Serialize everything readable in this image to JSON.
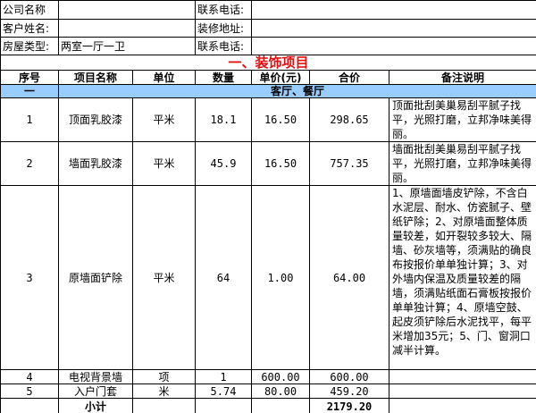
{
  "info": [
    {
      "label": "公司名称",
      "value": "",
      "label2": "联系电话:",
      "value2": ""
    },
    {
      "label": "客户姓名:",
      "value": "",
      "label2": "装修地址:",
      "value2": ""
    },
    {
      "label": "房屋类型:",
      "value": "两室一厅一卫",
      "label2": "联系电话:",
      "value2": ""
    }
  ],
  "title": "一、装饰项目",
  "headers": [
    "序号",
    "项目名称",
    "单位",
    "数量",
    "单价(元)",
    "合价",
    "备注说明"
  ],
  "section": {
    "no": "一",
    "name": "客厅、餐厅"
  },
  "rows": [
    {
      "no": "1",
      "name": "顶面乳胶漆",
      "unit": "平米",
      "qty": "18.1",
      "price": "16.50",
      "total": "298.65",
      "note": "顶面批刮美巢易刮平腻子找平，光照打磨，立邦净味美得丽。"
    },
    {
      "no": "2",
      "name": "墙面乳胶漆",
      "unit": "平米",
      "qty": "45.9",
      "price": "16.50",
      "total": "757.35",
      "note": "墙面批刮美巢易刮平腻子找平，光照打磨，立邦净味美得丽。"
    },
    {
      "no": "3",
      "name": "原墙面铲除",
      "unit": "平米",
      "qty": "64",
      "price": "1.00",
      "total": "64.00",
      "note": "1、原墙面墙皮铲除，不含白水泥层、耐水、仿瓷腻子、壁纸铲除；2、对原墙面整体质量较差，如开裂较多较大、隔墙、砂灰墙等，须满贴的确良布按报价单单独计算；3、对外墙内保温及质量较差的隔墙，须满贴纸面石膏板按报价单单独计算；4、原墙空鼓、起皮须铲除后水泥找平，每平米增加35元；5、门、窗洞口减半计算。"
    },
    {
      "no": "4",
      "name": "电视背景墙",
      "unit": "项",
      "qty": "1",
      "price": "600.00",
      "total": "600.00",
      "note": ""
    },
    {
      "no": "5",
      "name": "入户门套",
      "unit": "米",
      "qty": "5.74",
      "price": "80.00",
      "total": "459.20",
      "note": ""
    }
  ],
  "subtotal": {
    "label": "小计",
    "total": "2179.20"
  }
}
